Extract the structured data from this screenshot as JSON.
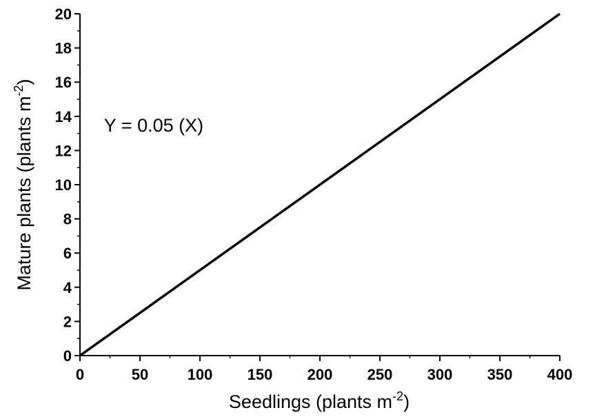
{
  "chart_data": {
    "type": "line",
    "title": "",
    "xlabel": {
      "main": "Seedlings (plants m",
      "sup": "-2",
      "close": ")"
    },
    "ylabel": {
      "main": "Mature plants (plants m",
      "sup": "-2",
      "close": ")"
    },
    "xlim": [
      0,
      400
    ],
    "ylim": [
      0,
      20
    ],
    "x_major_ticks": [
      0,
      50,
      100,
      150,
      200,
      250,
      300,
      350,
      400
    ],
    "x_tick_labels": [
      "0",
      "50",
      "100",
      "150",
      "200",
      "250",
      "300",
      "350",
      "400"
    ],
    "x_minor_step": 25,
    "y_major_ticks": [
      0,
      2,
      4,
      6,
      8,
      10,
      12,
      14,
      16,
      18,
      20
    ],
    "y_tick_labels": [
      "0",
      "2",
      "4",
      "6",
      "8",
      "10",
      "12",
      "14",
      "16",
      "18",
      "20"
    ],
    "y_minor_step": 1,
    "grid": false,
    "legend": "none",
    "series": [
      {
        "x": [
          0,
          400
        ],
        "y": [
          0,
          20
        ],
        "color": "#000000"
      }
    ],
    "annotations": [
      {
        "text": "Y = 0.05 (X)",
        "x": 20,
        "y": 13.5
      }
    ]
  }
}
